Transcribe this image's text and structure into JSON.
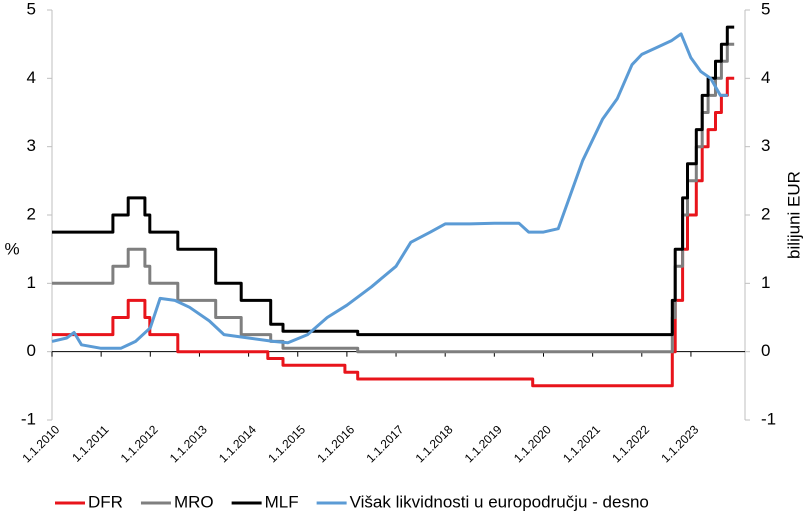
{
  "chart_data": {
    "type": "line",
    "y_label": "%",
    "y2_label": "bilijuni EUR",
    "xlim": [
      2010,
      2024.1
    ],
    "xticks": [
      {
        "value": 2010,
        "label": "1.1.2010"
      },
      {
        "value": 2011,
        "label": "1.1.2011"
      },
      {
        "value": 2012,
        "label": "1.1.2012"
      },
      {
        "value": 2013,
        "label": "1.1.2013"
      },
      {
        "value": 2014,
        "label": "1.1.2014"
      },
      {
        "value": 2015,
        "label": "1.1.2015"
      },
      {
        "value": 2016,
        "label": "1.1.2016"
      },
      {
        "value": 2017,
        "label": "1.1.2017"
      },
      {
        "value": 2018,
        "label": "1.1.2018"
      },
      {
        "value": 2019,
        "label": "1.1.2019"
      },
      {
        "value": 2020,
        "label": "1.1.2020"
      },
      {
        "value": 2021,
        "label": "1.1.2021"
      },
      {
        "value": 2022,
        "label": "1.1.2022"
      },
      {
        "value": 2023,
        "label": "1.1.2023"
      }
    ],
    "ylim": [
      -1,
      5
    ],
    "yticks": [
      -1,
      0,
      1,
      2,
      3,
      4,
      5
    ],
    "y2lim": [
      -1,
      5
    ],
    "y2ticks": [
      -1,
      0,
      1,
      2,
      3,
      4,
      5
    ],
    "legend": "bottom",
    "series": [
      {
        "name": "DFR",
        "color": "#e8141b",
        "x": [
          2010,
          2011.24,
          2011.24,
          2011.55,
          2011.55,
          2011.89,
          2011.89,
          2011.99,
          2011.99,
          2012.56,
          2012.56,
          2014.39,
          2014.39,
          2014.7,
          2014.7,
          2015.96,
          2015.96,
          2016.22,
          2016.22,
          2019.78,
          2019.78,
          2022.62,
          2022.62,
          2022.68,
          2022.68,
          2022.83,
          2022.83,
          2022.93,
          2022.93,
          2023.11,
          2023.11,
          2023.23,
          2023.23,
          2023.35,
          2023.35,
          2023.5,
          2023.5,
          2023.62,
          2023.62,
          2023.74,
          2023.74,
          2023.88
        ],
        "values": [
          0.25,
          0.25,
          0.5,
          0.5,
          0.75,
          0.75,
          0.5,
          0.5,
          0.25,
          0.25,
          0,
          0,
          -0.1,
          -0.1,
          -0.2,
          -0.2,
          -0.3,
          -0.3,
          -0.4,
          -0.4,
          -0.5,
          -0.5,
          0,
          0,
          0.75,
          0.75,
          1.5,
          1.5,
          2,
          2,
          2.5,
          2.5,
          3,
          3,
          3.25,
          3.25,
          3.5,
          3.5,
          3.75,
          3.75,
          4,
          4
        ]
      },
      {
        "name": "MRO",
        "color": "#7f7f7f",
        "x": [
          2010,
          2011.24,
          2011.24,
          2011.55,
          2011.55,
          2011.89,
          2011.89,
          2011.99,
          2011.99,
          2012.56,
          2012.56,
          2013.33,
          2013.33,
          2013.85,
          2013.85,
          2014.45,
          2014.45,
          2014.7,
          2014.7,
          2016.22,
          2016.22,
          2022.62,
          2022.62,
          2022.68,
          2022.68,
          2022.83,
          2022.83,
          2022.93,
          2022.93,
          2023.11,
          2023.11,
          2023.23,
          2023.23,
          2023.35,
          2023.35,
          2023.5,
          2023.5,
          2023.62,
          2023.62,
          2023.74,
          2023.74,
          2023.88
        ],
        "values": [
          1,
          1,
          1.25,
          1.25,
          1.5,
          1.5,
          1.25,
          1.25,
          1,
          1,
          0.75,
          0.75,
          0.5,
          0.5,
          0.25,
          0.25,
          0.15,
          0.15,
          0.05,
          0.05,
          0,
          0,
          0.5,
          0.5,
          1.25,
          1.25,
          2,
          2,
          2.5,
          2.5,
          3,
          3,
          3.5,
          3.5,
          3.75,
          3.75,
          4,
          4,
          4.25,
          4.25,
          4.5,
          4.5
        ]
      },
      {
        "name": "MLF",
        "color": "#000000",
        "x": [
          2010,
          2011.24,
          2011.24,
          2011.55,
          2011.55,
          2011.89,
          2011.89,
          2011.99,
          2011.99,
          2012.56,
          2012.56,
          2013.33,
          2013.33,
          2013.85,
          2013.85,
          2014.45,
          2014.45,
          2014.7,
          2014.7,
          2016.22,
          2016.22,
          2022.62,
          2022.62,
          2022.68,
          2022.68,
          2022.83,
          2022.83,
          2022.93,
          2022.93,
          2023.11,
          2023.11,
          2023.23,
          2023.23,
          2023.35,
          2023.35,
          2023.5,
          2023.5,
          2023.62,
          2023.62,
          2023.74,
          2023.74,
          2023.88
        ],
        "values": [
          1.75,
          1.75,
          2,
          2,
          2.25,
          2.25,
          2,
          2,
          1.75,
          1.75,
          1.5,
          1.5,
          1,
          1,
          0.75,
          0.75,
          0.4,
          0.4,
          0.3,
          0.3,
          0.25,
          0.25,
          0.75,
          0.75,
          1.5,
          1.5,
          2.25,
          2.25,
          2.75,
          2.75,
          3.25,
          3.25,
          3.75,
          3.75,
          4,
          4,
          4.25,
          4.25,
          4.5,
          4.5,
          4.75,
          4.75
        ]
      },
      {
        "name": "Višak likvidnosti u europodručju - desno",
        "color": "#5b9bd5",
        "axis": "y2",
        "x": [
          2010,
          2010.3,
          2010.45,
          2010.6,
          2011,
          2011.4,
          2011.7,
          2012,
          2012.2,
          2012.5,
          2012.8,
          2013.2,
          2013.5,
          2014,
          2014.5,
          2014.8,
          2015.2,
          2015.6,
          2016,
          2016.5,
          2017,
          2017.3,
          2017.7,
          2018,
          2018.5,
          2019,
          2019.5,
          2019.7,
          2020,
          2020.3,
          2020.5,
          2020.8,
          2021.2,
          2021.5,
          2021.8,
          2022,
          2022.3,
          2022.6,
          2022.8,
          2023,
          2023.2,
          2023.4,
          2023.6,
          2023.75
        ],
        "values": [
          0.15,
          0.2,
          0.28,
          0.1,
          0.05,
          0.05,
          0.15,
          0.35,
          0.78,
          0.75,
          0.65,
          0.45,
          0.25,
          0.2,
          0.15,
          0.13,
          0.25,
          0.5,
          0.68,
          0.95,
          1.25,
          1.6,
          1.75,
          1.87,
          1.87,
          1.88,
          1.88,
          1.75,
          1.75,
          1.8,
          2.2,
          2.8,
          3.4,
          3.7,
          4.2,
          4.35,
          4.45,
          4.55,
          4.65,
          4.3,
          4.1,
          4.0,
          3.75,
          3.75
        ]
      }
    ]
  }
}
